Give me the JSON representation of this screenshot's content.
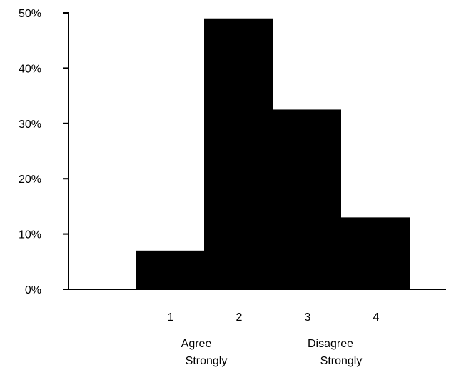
{
  "chart_data": {
    "type": "bar",
    "title": "",
    "xlabel": "",
    "ylabel": "",
    "categories": [
      "1",
      "2",
      "3",
      "4"
    ],
    "values": [
      7,
      49,
      32.5,
      13
    ],
    "value_format": "percent",
    "ylim": [
      0,
      50
    ],
    "yticks": [
      0,
      10,
      20,
      30,
      40,
      50
    ],
    "ytick_labels": [
      "0%",
      "10%",
      "20%",
      "30%",
      "40%",
      "50%"
    ],
    "bar_color": "#000000",
    "grid": false,
    "legend": "none",
    "annotations": {
      "left": [
        "Agree",
        "Strongly"
      ],
      "right": [
        "Disagree",
        "Strongly"
      ]
    }
  }
}
